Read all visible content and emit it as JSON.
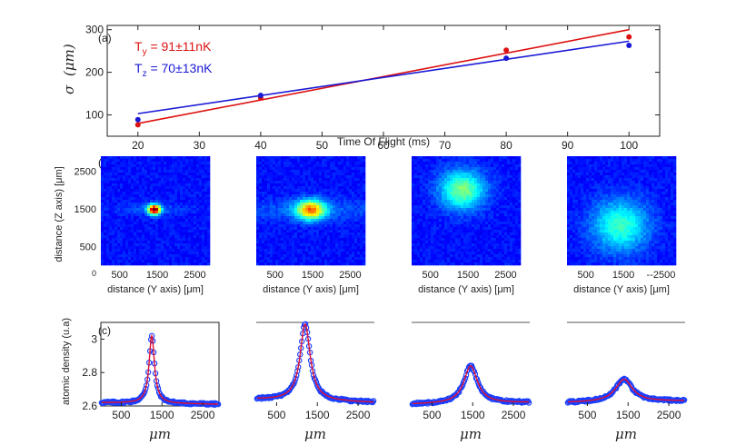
{
  "chart_data": [
    {
      "panel": "a",
      "type": "scatter",
      "panel_label": "(a)",
      "xlabel": "Time Of Flight (ms)",
      "ylabel_symbol": "σ",
      "ylabel_unit": "(μm)",
      "xlim": [
        15,
        105
      ],
      "ylim": [
        50,
        310
      ],
      "xticks": [
        "20",
        "30",
        "40",
        "50",
        "60",
        "70",
        "80",
        "90",
        "100"
      ],
      "yticks": [
        "100",
        "200",
        "300"
      ],
      "series": [
        {
          "name": "T_y = 91±11nK",
          "label_main": "T",
          "label_sub": "y",
          "label_rest": " = 91±11nK",
          "color": "#dd1111",
          "points": [
            [
              20,
              77
            ],
            [
              40,
              140
            ],
            [
              80,
              252
            ],
            [
              100,
              283
            ]
          ],
          "fit": [
            [
              20,
              80
            ],
            [
              100,
              300
            ]
          ]
        },
        {
          "name": "T_z = 70±13nK",
          "label_main": "T",
          "label_sub": "z",
          "label_rest": " = 70±13nK",
          "color": "#1a1ad6",
          "points": [
            [
              20,
              89
            ],
            [
              40,
              146
            ],
            [
              80,
              233
            ],
            [
              100,
              263
            ]
          ],
          "fit": [
            [
              20,
              103
            ],
            [
              100,
              273
            ]
          ]
        }
      ]
    },
    {
      "panel": "b",
      "type": "heatmap",
      "panel_label": "(b)",
      "ylabel": "distance (Z axis) [μm]",
      "xlabel": "distance (Y axis) [μm]",
      "yticks": [
        "2500",
        "1500",
        "500",
        "0"
      ],
      "images": [
        {
          "xticks": [
            "500",
            "1500",
            "2500"
          ],
          "center": [
            1420,
            1480
          ],
          "sigma_y": 110,
          "sigma_z": 90,
          "peak": 1.0
        },
        {
          "xticks": [
            "500",
            "1500",
            "2500"
          ],
          "center": [
            1450,
            1470
          ],
          "sigma_y": 260,
          "sigma_z": 180,
          "peak": 0.62
        },
        {
          "xticks": [
            "500",
            "1500",
            "2500"
          ],
          "center": [
            1350,
            2000
          ],
          "sigma_y": 420,
          "sigma_z": 360,
          "peak": 0.42
        },
        {
          "xticks": [
            "500",
            "1500",
            "--2500"
          ],
          "center": [
            1420,
            1050
          ],
          "sigma_y": 520,
          "sigma_z": 480,
          "peak": 0.34
        }
      ]
    },
    {
      "panel": "c",
      "type": "line",
      "panel_label": "(c)",
      "ylabel": "atomic density (u.a)",
      "xlabel": "μm",
      "xlim": [
        0,
        2900
      ],
      "ylim": [
        2.6,
        3.1
      ],
      "yticks": [
        "2.6",
        "2.8",
        "3"
      ],
      "xticks": [
        "500",
        "1500",
        "2500"
      ],
      "profiles": [
        {
          "center": 1250,
          "peak": 3.02,
          "base_left": 2.62,
          "base_right": 2.61,
          "width": 160
        },
        {
          "center": 1200,
          "peak": 3.09,
          "base_left": 2.64,
          "base_right": 2.62,
          "width": 300
        },
        {
          "center": 1450,
          "peak": 2.84,
          "base_left": 2.61,
          "base_right": 2.62,
          "width": 400
        },
        {
          "center": 1400,
          "peak": 2.76,
          "base_left": 2.62,
          "base_right": 2.63,
          "width": 500
        }
      ],
      "data_color": "#1a3fff",
      "fit_color": "#e01030"
    }
  ]
}
